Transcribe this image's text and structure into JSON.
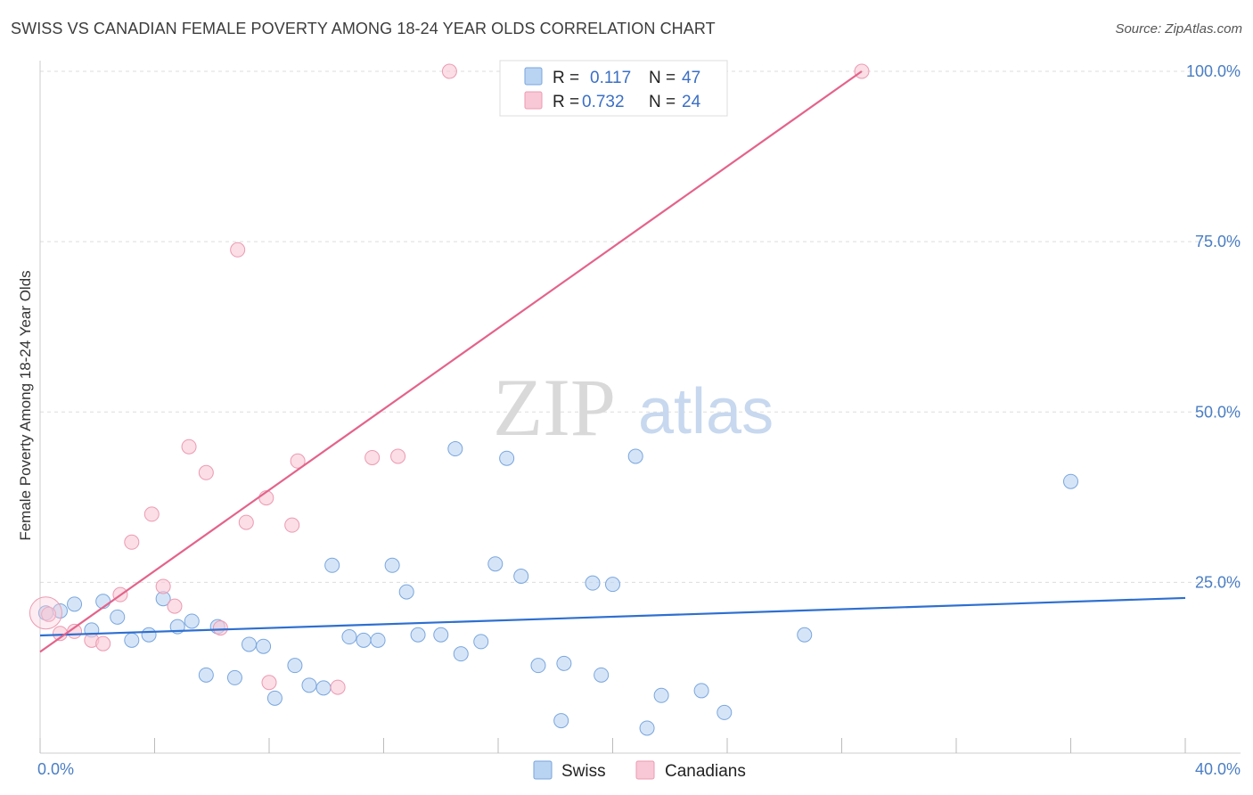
{
  "title": "SWISS VS CANADIAN FEMALE POVERTY AMONG 18-24 YEAR OLDS CORRELATION CHART",
  "source": "Source: ZipAtlas.com",
  "watermark": {
    "zip": "ZIP",
    "atlas": "atlas"
  },
  "colors": {
    "swiss_fill": "#b9d3f2",
    "swiss_stroke": "#7aa6de",
    "swiss_line": "#2e6fd0",
    "canadian_fill": "#f8c8d6",
    "canadian_stroke": "#ec9ab2",
    "canadian_line": "#e4638b",
    "grid": "#dddddd",
    "tick_text": "#4a7ec4"
  },
  "legend": {
    "swiss": {
      "r_label": "R =",
      "r_value": "0.117",
      "n_label": "N =",
      "n_value": "47"
    },
    "canadians": {
      "r_label": "R =",
      "r_value": "0.732",
      "n_label": "N =",
      "n_value": "24"
    }
  },
  "chart_data": {
    "type": "scatter",
    "title": "SWISS VS CANADIAN FEMALE POVERTY AMONG 18-24 YEAR OLDS CORRELATION CHART",
    "xlabel": "",
    "ylabel": "Female Poverty Among 18-24 Year Olds",
    "xlim": [
      0,
      40
    ],
    "ylim": [
      0,
      100
    ],
    "x_tick_labels": [
      "0.0%",
      "40.0%"
    ],
    "y_ticks": [
      25,
      50,
      75,
      100
    ],
    "y_tick_labels": [
      "25.0%",
      "50.0%",
      "75.0%",
      "100.0%"
    ],
    "grid": true,
    "legend_position": "top-center",
    "series": [
      {
        "name": "Swiss",
        "points": [
          [
            0.2,
            20.5
          ],
          [
            0.7,
            20.8
          ],
          [
            1.2,
            21.8
          ],
          [
            1.8,
            18.0
          ],
          [
            2.2,
            22.2
          ],
          [
            2.7,
            19.9
          ],
          [
            3.2,
            16.5
          ],
          [
            3.8,
            17.3
          ],
          [
            4.3,
            22.6
          ],
          [
            4.8,
            18.5
          ],
          [
            5.3,
            19.3
          ],
          [
            5.8,
            11.4
          ],
          [
            6.2,
            18.5
          ],
          [
            6.8,
            11.0
          ],
          [
            7.3,
            15.9
          ],
          [
            7.8,
            15.6
          ],
          [
            8.2,
            8.0
          ],
          [
            8.9,
            12.8
          ],
          [
            9.4,
            9.9
          ],
          [
            9.9,
            9.5
          ],
          [
            10.2,
            27.5
          ],
          [
            10.8,
            17.0
          ],
          [
            11.3,
            16.5
          ],
          [
            11.8,
            16.5
          ],
          [
            12.3,
            27.5
          ],
          [
            12.8,
            23.6
          ],
          [
            13.2,
            17.3
          ],
          [
            14.0,
            17.3
          ],
          [
            14.5,
            44.6
          ],
          [
            14.7,
            14.5
          ],
          [
            15.4,
            16.3
          ],
          [
            15.9,
            27.7
          ],
          [
            16.3,
            43.2
          ],
          [
            16.8,
            25.9
          ],
          [
            17.4,
            12.8
          ],
          [
            18.2,
            4.7
          ],
          [
            18.3,
            13.1
          ],
          [
            19.3,
            24.9
          ],
          [
            19.6,
            11.4
          ],
          [
            20.0,
            24.7
          ],
          [
            20.8,
            43.5
          ],
          [
            21.2,
            3.6
          ],
          [
            21.7,
            8.4
          ],
          [
            23.1,
            9.1
          ],
          [
            23.9,
            5.9
          ],
          [
            26.7,
            17.3
          ],
          [
            36.0,
            39.8
          ]
        ],
        "trend": {
          "x": [
            0,
            40
          ],
          "y": [
            17.2,
            22.7
          ]
        }
      },
      {
        "name": "Canadians",
        "points": [
          [
            0.3,
            20.3
          ],
          [
            0.7,
            17.5
          ],
          [
            1.2,
            17.8
          ],
          [
            1.8,
            16.5
          ],
          [
            2.2,
            16.0
          ],
          [
            2.8,
            23.2
          ],
          [
            3.2,
            30.9
          ],
          [
            3.9,
            35.0
          ],
          [
            4.3,
            24.4
          ],
          [
            4.7,
            21.5
          ],
          [
            5.2,
            44.9
          ],
          [
            5.8,
            41.1
          ],
          [
            6.3,
            18.3
          ],
          [
            6.9,
            73.8
          ],
          [
            7.2,
            33.8
          ],
          [
            7.9,
            37.4
          ],
          [
            8.0,
            10.3
          ],
          [
            8.8,
            33.4
          ],
          [
            9.0,
            42.8
          ],
          [
            10.4,
            9.6
          ],
          [
            11.6,
            43.3
          ],
          [
            12.5,
            43.5
          ],
          [
            14.3,
            100.0
          ],
          [
            28.7,
            100.0
          ]
        ],
        "trend": {
          "x": [
            0,
            28.7
          ],
          "y": [
            14.8,
            100.0
          ]
        }
      }
    ]
  },
  "bottom_legend": [
    {
      "label": "Swiss",
      "color": "#b9d3f2",
      "stroke": "#7aa6de"
    },
    {
      "label": "Canadians",
      "color": "#f8c8d6",
      "stroke": "#ec9ab2"
    }
  ]
}
